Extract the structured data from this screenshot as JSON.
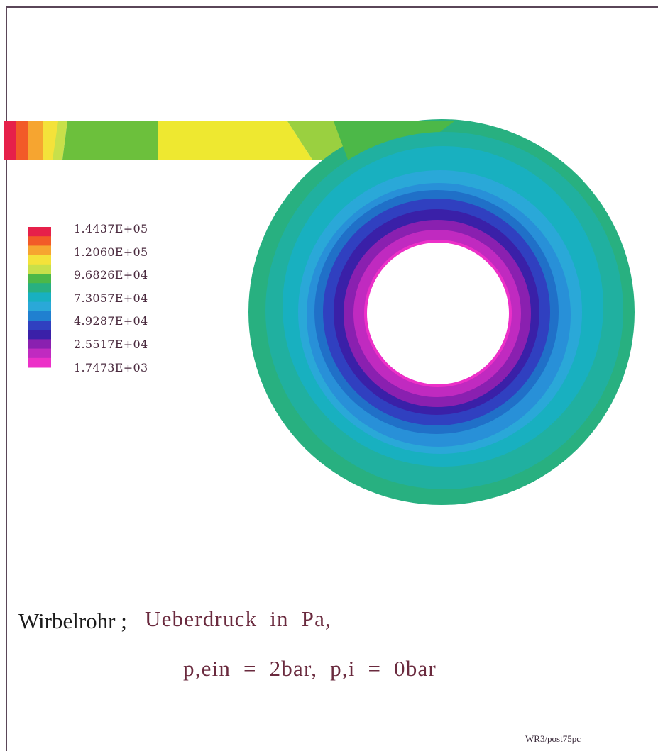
{
  "legend": {
    "labels": [
      "1.4437E+05",
      "1.2060E+05",
      "9.6826E+04",
      "7.3057E+04",
      "4.9287E+04",
      "2.5517E+04",
      "1.7473E+03"
    ],
    "colors": [
      "#e6204a",
      "#f25a28",
      "#f6a530",
      "#f4e23a",
      "#c8e04a",
      "#4cb848",
      "#28b080",
      "#18b0c0",
      "#2aa8d8",
      "#2080d0",
      "#3040c0",
      "#3a20a8",
      "#8a20b0",
      "#c02ac0",
      "#ec30c8"
    ]
  },
  "caption": {
    "line1_a": "Wirbelrohr ;",
    "line1_b": "Ueberdruck  in  Pa,",
    "line2": "p,ein  =  2bar,  p,i  =  0bar"
  },
  "tag": "WR3/post75pc"
}
